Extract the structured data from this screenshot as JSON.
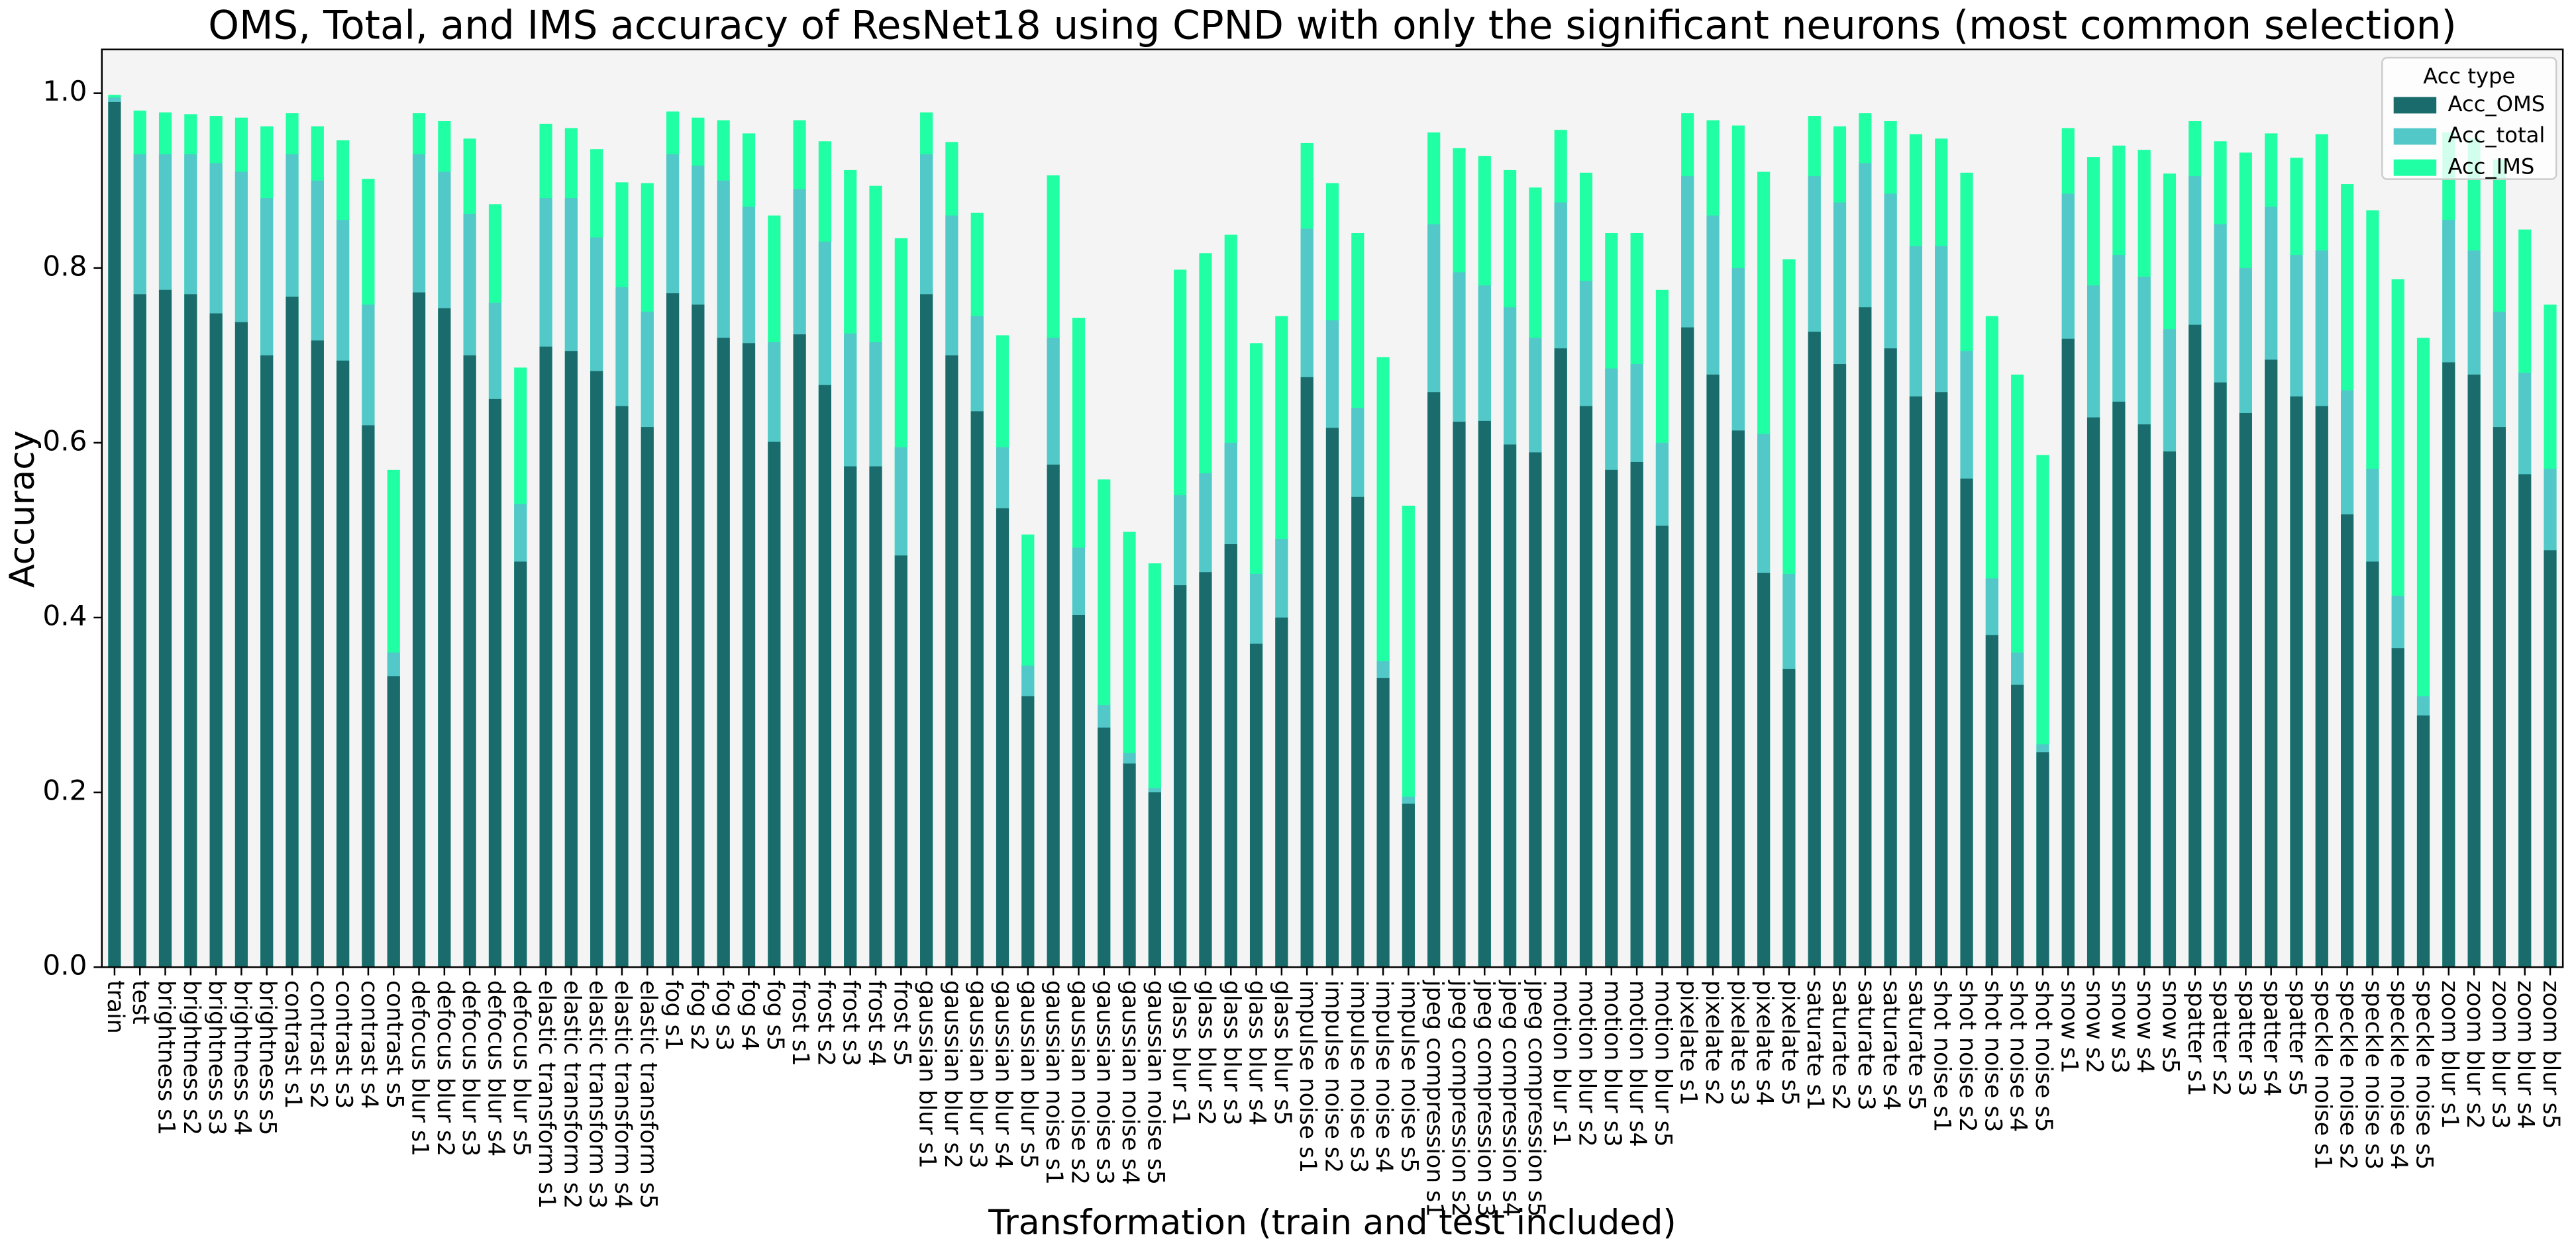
{
  "chart_data": {
    "type": "bar",
    "mode": "overlay",
    "title": "OMS, Total,  and IMS accuracy of ResNet18 using CPND with only the significant neurons (most common selection)",
    "xlabel": "Transformation (train and test included)",
    "ylabel": "Accuracy",
    "legend_title": "Acc type",
    "legend": "upper right",
    "background": "#f4f4f4",
    "categories": [
      "train",
      "test",
      "brightness s1",
      "brightness s2",
      "brightness s3",
      "brightness s4",
      "brightness s5",
      "contrast s1",
      "contrast s2",
      "contrast s3",
      "contrast s4",
      "contrast s5",
      "defocus blur s1",
      "defocus blur s2",
      "defocus blur s3",
      "defocus blur s4",
      "defocus blur s5",
      "elastic transform s1",
      "elastic transform s2",
      "elastic transform s3",
      "elastic transform s4",
      "elastic transform s5",
      "fog s1",
      "fog s2",
      "fog s3",
      "fog s4",
      "fog s5",
      "frost s1",
      "frost s2",
      "frost s3",
      "frost s4",
      "frost s5",
      "gaussian blur s1",
      "gaussian blur s2",
      "gaussian blur s3",
      "gaussian blur s4",
      "gaussian blur s5",
      "gaussian noise s1",
      "gaussian noise s2",
      "gaussian noise s3",
      "gaussian noise s4",
      "gaussian noise s5",
      "glass blur s1",
      "glass blur s2",
      "glass blur s3",
      "glass blur s4",
      "glass blur s5",
      "impulse noise s1",
      "impulse noise s2",
      "impulse noise s3",
      "impulse noise s4",
      "impulse noise s5",
      "jpeg compression s1",
      "jpeg compression s2",
      "jpeg compression s3",
      "jpeg compression s4",
      "jpeg compression s5",
      "motion blur s1",
      "motion blur s2",
      "motion blur s3",
      "motion blur s4",
      "motion blur s5",
      "pixelate s1",
      "pixelate s2",
      "pixelate s3",
      "pixelate s4",
      "pixelate s5",
      "saturate s1",
      "saturate s2",
      "saturate s3",
      "saturate s4",
      "saturate s5",
      "shot noise s1",
      "shot noise s2",
      "shot noise s3",
      "shot noise s4",
      "shot noise s5",
      "snow s1",
      "snow s2",
      "snow s3",
      "snow s4",
      "snow s5",
      "spatter s1",
      "spatter s2",
      "spatter s3",
      "spatter s4",
      "spatter s5",
      "speckle noise s1",
      "speckle noise s2",
      "speckle noise s3",
      "speckle noise s4",
      "speckle noise s5",
      "zoom blur s1",
      "zoom blur s2",
      "zoom blur s3",
      "zoom blur s4",
      "zoom blur s5"
    ],
    "series": [
      {
        "name": "Acc_OMS",
        "color": "#1a6b6b",
        "values": [
          0.99,
          0.77,
          0.775,
          0.77,
          0.748,
          0.738,
          0.7,
          0.767,
          0.717,
          0.694,
          0.62,
          0.333,
          0.772,
          0.754,
          0.7,
          0.65,
          0.464,
          0.71,
          0.705,
          0.682,
          0.642,
          0.618,
          0.771,
          0.758,
          0.72,
          0.714,
          0.601,
          0.724,
          0.666,
          0.573,
          0.573,
          0.471,
          0.77,
          0.7,
          0.636,
          0.525,
          0.31,
          0.575,
          0.403,
          0.274,
          0.233,
          0.2,
          0.437,
          0.452,
          0.484,
          0.37,
          0.4,
          0.675,
          0.617,
          0.538,
          0.331,
          0.187,
          0.658,
          0.624,
          0.625,
          0.598,
          0.589,
          0.708,
          0.642,
          0.569,
          0.578,
          0.505,
          0.732,
          0.678,
          0.614,
          0.451,
          0.341,
          0.727,
          0.69,
          0.755,
          0.708,
          0.653,
          0.658,
          0.559,
          0.38,
          0.323,
          0.246,
          0.719,
          0.629,
          0.647,
          0.621,
          0.59,
          0.735,
          0.669,
          0.634,
          0.695,
          0.653,
          0.642,
          0.518,
          0.464,
          0.365,
          0.288,
          0.692,
          0.678,
          0.618,
          0.564,
          0.477
        ]
      },
      {
        "name": "Acc_total",
        "color": "#52c8c8",
        "values": [
          0.995,
          0.93,
          0.93,
          0.93,
          0.92,
          0.91,
          0.88,
          0.93,
          0.9,
          0.855,
          0.758,
          0.36,
          0.93,
          0.91,
          0.862,
          0.76,
          0.53,
          0.88,
          0.88,
          0.835,
          0.778,
          0.75,
          0.93,
          0.917,
          0.9,
          0.87,
          0.715,
          0.89,
          0.83,
          0.725,
          0.715,
          0.595,
          0.93,
          0.86,
          0.745,
          0.595,
          0.345,
          0.72,
          0.48,
          0.3,
          0.245,
          0.205,
          0.54,
          0.565,
          0.6,
          0.45,
          0.49,
          0.845,
          0.74,
          0.64,
          0.35,
          0.195,
          0.85,
          0.795,
          0.78,
          0.755,
          0.72,
          0.875,
          0.785,
          0.685,
          0.69,
          0.6,
          0.905,
          0.86,
          0.8,
          0.61,
          0.45,
          0.905,
          0.875,
          0.92,
          0.885,
          0.825,
          0.825,
          0.705,
          0.445,
          0.36,
          0.255,
          0.885,
          0.78,
          0.815,
          0.79,
          0.73,
          0.905,
          0.85,
          0.8,
          0.87,
          0.815,
          0.82,
          0.66,
          0.57,
          0.425,
          0.31,
          0.855,
          0.82,
          0.75,
          0.68,
          0.57
        ]
      },
      {
        "name": "Acc_IMS",
        "color": "#21ffa4",
        "values": [
          0.998,
          0.98,
          0.978,
          0.976,
          0.974,
          0.972,
          0.962,
          0.977,
          0.962,
          0.946,
          0.902,
          0.569,
          0.977,
          0.968,
          0.948,
          0.873,
          0.686,
          0.965,
          0.96,
          0.936,
          0.898,
          0.897,
          0.979,
          0.972,
          0.969,
          0.954,
          0.86,
          0.969,
          0.945,
          0.912,
          0.894,
          0.834,
          0.978,
          0.944,
          0.863,
          0.723,
          0.495,
          0.906,
          0.743,
          0.558,
          0.498,
          0.462,
          0.798,
          0.817,
          0.838,
          0.714,
          0.745,
          0.943,
          0.897,
          0.84,
          0.698,
          0.528,
          0.955,
          0.937,
          0.928,
          0.912,
          0.892,
          0.958,
          0.909,
          0.84,
          0.84,
          0.775,
          0.977,
          0.969,
          0.963,
          0.91,
          0.81,
          0.974,
          0.962,
          0.977,
          0.968,
          0.953,
          0.948,
          0.909,
          0.745,
          0.678,
          0.586,
          0.96,
          0.927,
          0.94,
          0.935,
          0.908,
          0.968,
          0.945,
          0.932,
          0.954,
          0.926,
          0.953,
          0.896,
          0.866,
          0.787,
          0.72,
          0.955,
          0.948,
          0.924,
          0.844,
          0.758
        ]
      }
    ],
    "ylim": [
      0,
      1.05
    ],
    "yticks": [
      {
        "value": 0,
        "label": "0.0"
      },
      0.2,
      0.4,
      0.6,
      0.8,
      {
        "value": 1,
        "label": "1.0"
      }
    ]
  }
}
